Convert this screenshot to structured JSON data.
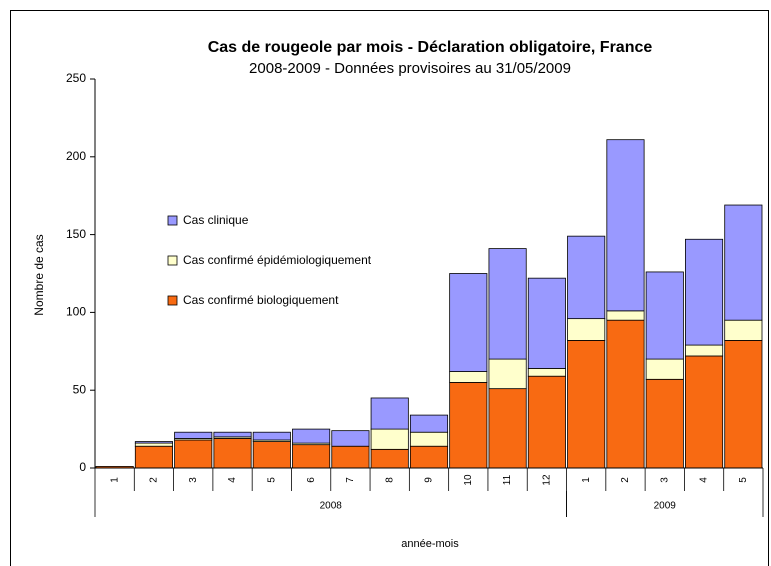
{
  "chart_data": {
    "type": "stacked-bar",
    "title": "Cas de rougeole par mois - Déclaration obligatoire, France",
    "subtitle": "2008-2009 - Données provisoires au 31/05/2009",
    "y_label": "Nombre de cas",
    "x_label": "année-mois",
    "groups": [
      {
        "label": "2008",
        "categories": [
          "1",
          "2",
          "3",
          "4",
          "5",
          "6",
          "7",
          "8",
          "9",
          "10",
          "11",
          "12"
        ]
      },
      {
        "label": "2009",
        "categories": [
          "1",
          "2",
          "3",
          "4",
          "5"
        ]
      }
    ],
    "series": [
      {
        "name": "Cas confirmé biologiquement",
        "color": "#f86a12",
        "values": [
          1,
          14,
          18,
          19,
          17,
          15,
          14,
          12,
          14,
          55,
          51,
          59,
          82,
          95,
          57,
          72,
          82
        ]
      },
      {
        "name": "Cas confirmé épidémiologiquement",
        "color": "#ffffcc",
        "values": [
          0,
          2,
          1,
          1,
          1,
          1,
          0,
          13,
          9,
          7,
          19,
          5,
          14,
          6,
          13,
          7,
          13
        ]
      },
      {
        "name": "Cas clinique",
        "color": "#9999ff",
        "values": [
          0,
          1,
          4,
          3,
          5,
          9,
          10,
          20,
          11,
          63,
          71,
          58,
          53,
          110,
          56,
          68,
          74
        ]
      }
    ],
    "ylim": [
      0,
      250
    ],
    "yticks": [
      0,
      50,
      100,
      150,
      200,
      250
    ],
    "legend": "upper-left",
    "grid": false
  }
}
